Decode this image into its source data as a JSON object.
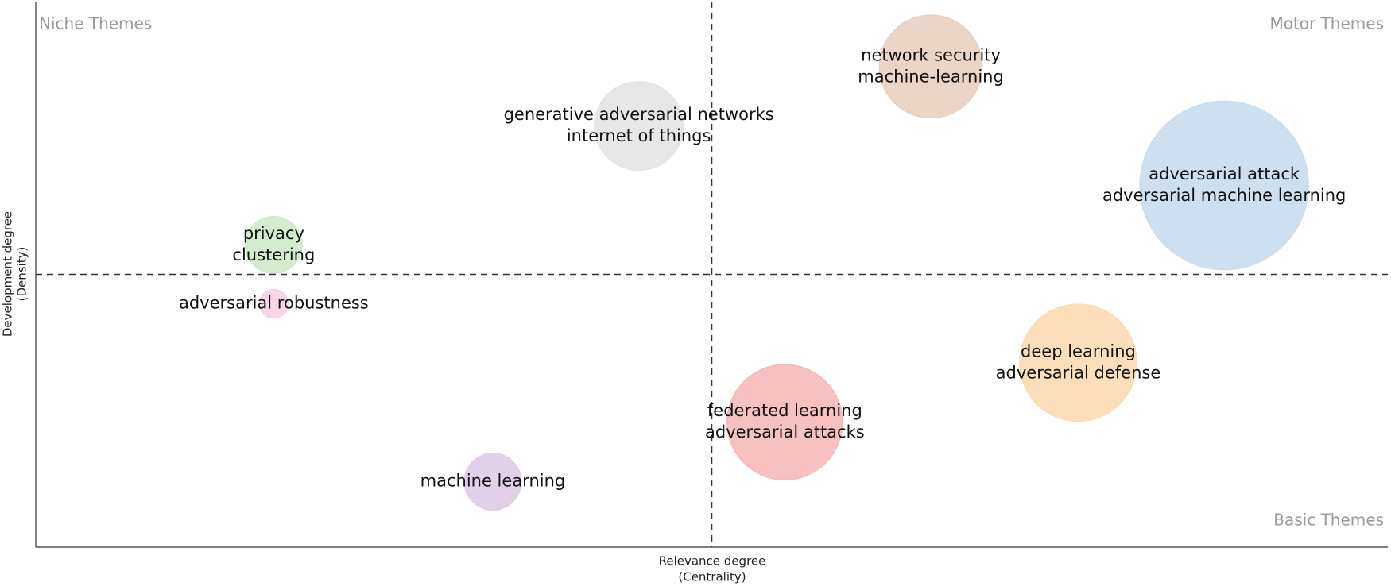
{
  "chart_data": {
    "type": "bubble",
    "x_label": [
      "Relevance degree",
      "(Centrality)"
    ],
    "y_label": [
      "Development degree",
      "(Density)"
    ],
    "quadrants": {
      "top_left": "Niche Themes",
      "top_right": "Motor Themes",
      "bottom_right": "Basic Themes"
    },
    "xlim": [
      0,
      100
    ],
    "ylim": [
      0,
      100
    ],
    "xref": 50,
    "yref": 50,
    "bubbles": [
      {
        "lines": [
          "network security",
          "machine-learning"
        ],
        "x": 66.2,
        "y": 88.1,
        "size": 33.6,
        "color": "#e8d0c0"
      },
      {
        "lines": [
          "generative adversarial networks",
          "internet of things"
        ],
        "x": 44.6,
        "y": 77.2,
        "size": 25,
        "color": "#e4e4e4"
      },
      {
        "lines": [
          "adversarial attack",
          "adversarial machine learning"
        ],
        "x": 87.9,
        "y": 66.3,
        "size": 90.3,
        "color": "#c9ddee"
      },
      {
        "lines": [
          "privacy",
          "clustering"
        ],
        "x": 17.6,
        "y": 55.4,
        "size": 10.2,
        "color": "#cfeac8"
      },
      {
        "lines": [
          "adversarial robustness"
        ],
        "x": 17.6,
        "y": 44.6,
        "size": 2.6,
        "color": "#f9cfe6"
      },
      {
        "lines": [
          "deep learning",
          "adversarial defense"
        ],
        "x": 77.1,
        "y": 33.8,
        "size": 43.6,
        "color": "#fddab2"
      },
      {
        "lines": [
          "federated learning",
          "adversarial attacks"
        ],
        "x": 55.4,
        "y": 22.9,
        "size": 42.3,
        "color": "#f6b9ba"
      },
      {
        "lines": [
          "machine learning"
        ],
        "x": 33.8,
        "y": 12.0,
        "size": 10.2,
        "color": "#dfcbe5"
      }
    ]
  }
}
